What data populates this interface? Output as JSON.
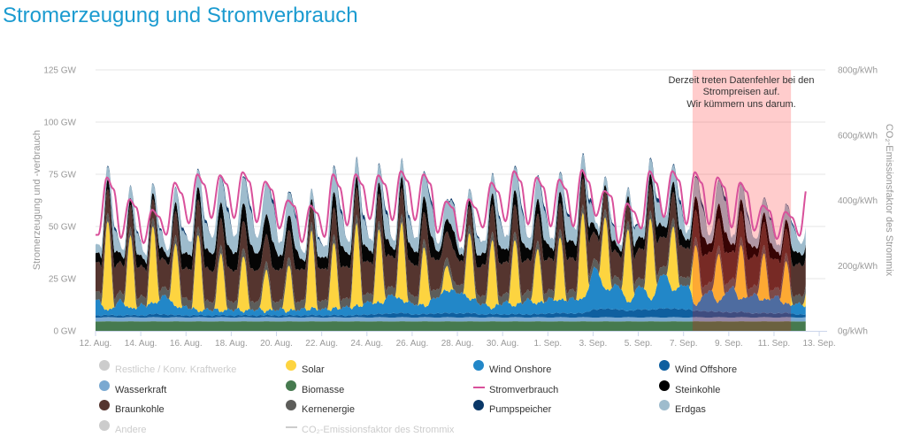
{
  "page": {
    "title": "Stromerzeugung und Stromverbrauch"
  },
  "chart_data": {
    "type": "area",
    "subtype": "stacked area with overlay line",
    "title": "Stromerzeugung und Stromverbrauch",
    "xlabel": "",
    "ylabel": "Stromerzeugung und -verbrauch",
    "ylabel_right": "CO₂-Emissionsfaktor des Strommix",
    "ylim": [
      0,
      125
    ],
    "ylim_right": [
      0,
      800
    ],
    "grid": true,
    "y_ticks": [
      {
        "value": 0,
        "label": "0 GW"
      },
      {
        "value": 25,
        "label": "25 GW"
      },
      {
        "value": 50,
        "label": "50 GW"
      },
      {
        "value": 75,
        "label": "75 GW"
      },
      {
        "value": 100,
        "label": "100 GW"
      },
      {
        "value": 125,
        "label": "125 GW"
      }
    ],
    "y_ticks_right": [
      {
        "value": 0,
        "label": "0g/kWh"
      },
      {
        "value": 200,
        "label": "200g/kWh"
      },
      {
        "value": 400,
        "label": "400g/kWh"
      },
      {
        "value": 600,
        "label": "600g/kWh"
      },
      {
        "value": 800,
        "label": "800g/kWh"
      }
    ],
    "xlim_days": [
      0,
      32.27
    ],
    "data_end_day": 31.4,
    "x_ticks": [
      {
        "day": 0,
        "label": "12. Aug."
      },
      {
        "day": 2,
        "label": "14. Aug."
      },
      {
        "day": 4,
        "label": "16. Aug."
      },
      {
        "day": 6,
        "label": "18. Aug."
      },
      {
        "day": 8,
        "label": "20. Aug."
      },
      {
        "day": 10,
        "label": "22. Aug."
      },
      {
        "day": 12,
        "label": "24. Aug."
      },
      {
        "day": 14,
        "label": "26. Aug."
      },
      {
        "day": 16,
        "label": "28. Aug."
      },
      {
        "day": 18,
        "label": "30. Aug."
      },
      {
        "day": 20,
        "label": "1. Sep."
      },
      {
        "day": 22,
        "label": "3. Sep."
      },
      {
        "day": 24,
        "label": "5. Sep."
      },
      {
        "day": 26,
        "label": "7. Sep."
      },
      {
        "day": 28,
        "label": "9. Sep."
      },
      {
        "day": 30,
        "label": "11. Sep."
      },
      {
        "day": 32,
        "label": "13. Sep."
      }
    ],
    "dates": [
      "12. Aug.",
      "13. Aug.",
      "14. Aug.",
      "15. Aug.",
      "16. Aug.",
      "17. Aug.",
      "18. Aug.",
      "19. Aug.",
      "20. Aug.",
      "21. Aug.",
      "22. Aug.",
      "23. Aug.",
      "24. Aug.",
      "25. Aug.",
      "26. Aug.",
      "27. Aug.",
      "28. Aug.",
      "29. Aug.",
      "30. Aug.",
      "31. Aug.",
      "1. Sep.",
      "2. Sep.",
      "3. Sep.",
      "4. Sep.",
      "5. Sep.",
      "6. Sep.",
      "7. Sep.",
      "8. Sep.",
      "9. Sep.",
      "10. Sep.",
      "11. Sep.",
      "12. Sep."
    ],
    "units": "GW",
    "series_note": "per day: night = nightly minimum, day = daytime value (GW); solar = daily peak",
    "series": [
      {
        "key": "biomasse",
        "name": "Biomasse",
        "color": "#467a4f",
        "night": 4.5,
        "day": 4.6
      },
      {
        "key": "wasserkraft",
        "name": "Wasserkraft",
        "color": "#7aa9d1",
        "night": 1.8,
        "day": 2.0
      },
      {
        "key": "wind-offshore",
        "name": "Wind Offshore",
        "color": "#0f5f9f",
        "night": [
          1,
          1,
          1,
          1.5,
          1,
          1,
          1,
          1,
          1,
          1,
          1,
          1,
          1.5,
          2,
          1.5,
          2,
          2,
          1.5,
          1.5,
          1.5,
          2,
          2,
          4,
          4,
          4,
          4.5,
          4,
          3,
          2.5,
          2,
          2,
          1.5
        ],
        "day": [
          1,
          1,
          1.5,
          1,
          1,
          1,
          1,
          1,
          1,
          1,
          1,
          1,
          1.5,
          2,
          1.5,
          2,
          2,
          1.5,
          1.5,
          1.5,
          2,
          2,
          4,
          3,
          3.5,
          4,
          3,
          2.5,
          2.5,
          2,
          2,
          1.5
        ]
      },
      {
        "key": "wind-onshore",
        "name": "Wind Onshore",
        "color": "#2287c8",
        "night": [
          7,
          7,
          5,
          9,
          4,
          3,
          3,
          3,
          3,
          3,
          3,
          4,
          6,
          9,
          5,
          8,
          10,
          5,
          6,
          7,
          7,
          7,
          20,
          11.5,
          11.5,
          17,
          12,
          10,
          12,
          9,
          8,
          5
        ],
        "day": [
          2,
          3,
          5,
          4,
          2,
          2,
          2,
          2,
          2,
          3,
          3,
          4,
          5,
          6,
          4,
          11,
          7,
          3,
          4,
          5,
          6,
          6.5,
          9,
          4,
          5,
          9,
          3,
          5,
          6,
          6,
          4,
          4
        ]
      },
      {
        "key": "solar",
        "name": "Solar",
        "color": "#fdd440",
        "peak": [
          43,
          34.5,
          37,
          30,
          37,
          28,
          27,
          20,
          22,
          37,
          31,
          39,
          35,
          37,
          28,
          12,
          32,
          33,
          32,
          26,
          30,
          41,
          34.5,
          35,
          39,
          31,
          29,
          23,
          26,
          22,
          20,
          10
        ]
      },
      {
        "key": "kernenergie",
        "name": "Kernenergie",
        "color": "#5d5d5a",
        "night": 4.0,
        "day": 4.0
      },
      {
        "key": "braunkohle",
        "name": "Braunkohle",
        "color": "#55352f",
        "night": [
          14,
          14,
          14,
          12.5,
          15,
          15,
          15,
          15,
          15,
          15,
          15,
          15,
          15,
          14.5,
          15,
          14,
          11.5,
          15,
          15,
          15,
          15,
          15,
          12,
          11.5,
          14.5,
          14,
          14,
          14.5,
          13,
          14.5,
          13.5,
          15
        ],
        "day": [
          11.5,
          10.5,
          9,
          11.5,
          13,
          13,
          13,
          13,
          13,
          8.5,
          13,
          13,
          13,
          12.5,
          13,
          12.5,
          9,
          13,
          13,
          13,
          12.5,
          12.5,
          9,
          9,
          12.5,
          12.5,
          13,
          13,
          12.5,
          11,
          11.5,
          13
        ]
      },
      {
        "key": "steinkohle",
        "name": "Steinkohle",
        "color": "#050505",
        "night": [
          4.5,
          4,
          4,
          3.5,
          7,
          8.5,
          8.5,
          8,
          6.5,
          4.5,
          5.5,
          6.5,
          5.5,
          4,
          6.5,
          4,
          3,
          5.5,
          6,
          5,
          5,
          8,
          3,
          3,
          5.5,
          5,
          4,
          4,
          3.5,
          4,
          3.5,
          5
        ],
        "day": [
          4.5,
          3.5,
          3,
          4.5,
          6,
          7.5,
          8.5,
          9.5,
          7,
          2.5,
          7.5,
          5.5,
          5.5,
          5.5,
          7.5,
          6,
          3,
          5.5,
          7,
          7,
          5.5,
          4.5,
          2.5,
          3,
          5,
          5,
          6.5,
          7,
          5.5,
          4.5,
          4.5,
          6
        ]
      },
      {
        "key": "erdgas",
        "name": "Erdgas",
        "color": "#9ebccd",
        "night": [
          4,
          3.5,
          3.5,
          3,
          6.5,
          8,
          8,
          7.5,
          6,
          4,
          5,
          6,
          5.5,
          4,
          6.5,
          3.5,
          3,
          5.5,
          6,
          5,
          4.5,
          7.5,
          3,
          2.5,
          5,
          5,
          3.5,
          4,
          3.5,
          4,
          3.5,
          5
        ],
        "day": [
          6.5,
          6,
          4.5,
          7,
          8.5,
          12,
          12.5,
          14.5,
          11,
          4.5,
          12,
          8.5,
          8.5,
          8,
          11.5,
          9,
          5,
          9,
          11,
          10.5,
          9,
          7,
          4,
          4,
          7.5,
          8,
          9.5,
          11,
          7.5,
          7,
          7.5,
          9
        ]
      },
      {
        "key": "pumpspeicher",
        "name": "Pumpspeicher",
        "color": "#0a3868",
        "night": 0,
        "day": [
          1.5,
          1,
          1,
          1.5,
          1.5,
          2,
          2,
          2,
          1.5,
          1,
          2,
          2,
          2,
          1.5,
          2,
          1,
          1,
          1.5,
          2,
          2,
          1.5,
          2,
          1,
          1,
          2,
          2,
          2,
          2,
          1.5,
          1,
          1,
          1
        ]
      }
    ],
    "line": {
      "key": "stromverbrauch",
      "name": "Stromverbrauch",
      "color": "#d9519b",
      "night": [
        46,
        44.5,
        42,
        46,
        51.5,
        54,
        54,
        52,
        49,
        42.5,
        45,
        50.5,
        53.5,
        53,
        53,
        47,
        43,
        49.5,
        52.5,
        51,
        50,
        50,
        55,
        42,
        49,
        54.5,
        51,
        51,
        49.5,
        48,
        44,
        45.5
      ],
      "day": [
        73.5,
        63,
        58,
        71,
        75,
        74.5,
        76,
        71.5,
        62.5,
        60,
        75,
        75,
        74.5,
        76.5,
        75,
        62,
        63,
        71,
        76.5,
        73.5,
        72.5,
        77,
        67,
        61,
        76.5,
        76.5,
        76,
        73.5,
        71,
        60,
        57,
        71
      ]
    },
    "highlight": {
      "from_day": 26.4,
      "to_day": 30.75,
      "color": "#ff0000"
    },
    "annotation": {
      "lines": [
        "Derzeit treten Datenfehler bei den",
        "Strompreisen auf.",
        "Wir kümmern uns darum."
      ]
    },
    "legend_placement": "bottom"
  },
  "legend": [
    {
      "label": "Restliche / Konv. Kraftwerke",
      "color": "#cccccc",
      "marker": "circle",
      "active": false
    },
    {
      "label": "Solar",
      "color": "#fdd440",
      "marker": "circle",
      "active": true
    },
    {
      "label": "Wind Onshore",
      "color": "#2287c8",
      "marker": "circle",
      "active": true
    },
    {
      "label": "Wind Offshore",
      "color": "#0f5f9f",
      "marker": "circle",
      "active": true
    },
    {
      "label": "Wasserkraft",
      "color": "#7aa9d1",
      "marker": "circle",
      "active": true
    },
    {
      "label": "Biomasse",
      "color": "#467a4f",
      "marker": "circle",
      "active": true
    },
    {
      "label": "Stromverbrauch",
      "color": "#d9519b",
      "marker": "line",
      "active": true
    },
    {
      "label": "Steinkohle",
      "color": "#000000",
      "marker": "circle",
      "active": true
    },
    {
      "label": "Braunkohle",
      "color": "#55352f",
      "marker": "circle",
      "active": true
    },
    {
      "label": "Kernenergie",
      "color": "#5d5d5a",
      "marker": "circle",
      "active": true
    },
    {
      "label": "Pumpspeicher",
      "color": "#0a3868",
      "marker": "circle",
      "active": true
    },
    {
      "label": "Erdgas",
      "color": "#9ebccd",
      "marker": "circle",
      "active": true
    },
    {
      "label": "Andere",
      "color": "#cccccc",
      "marker": "circle",
      "active": false
    },
    {
      "label": "CO₂-Emissionsfaktor des Strommix",
      "color": "#cccccc",
      "marker": "line",
      "active": false
    }
  ]
}
